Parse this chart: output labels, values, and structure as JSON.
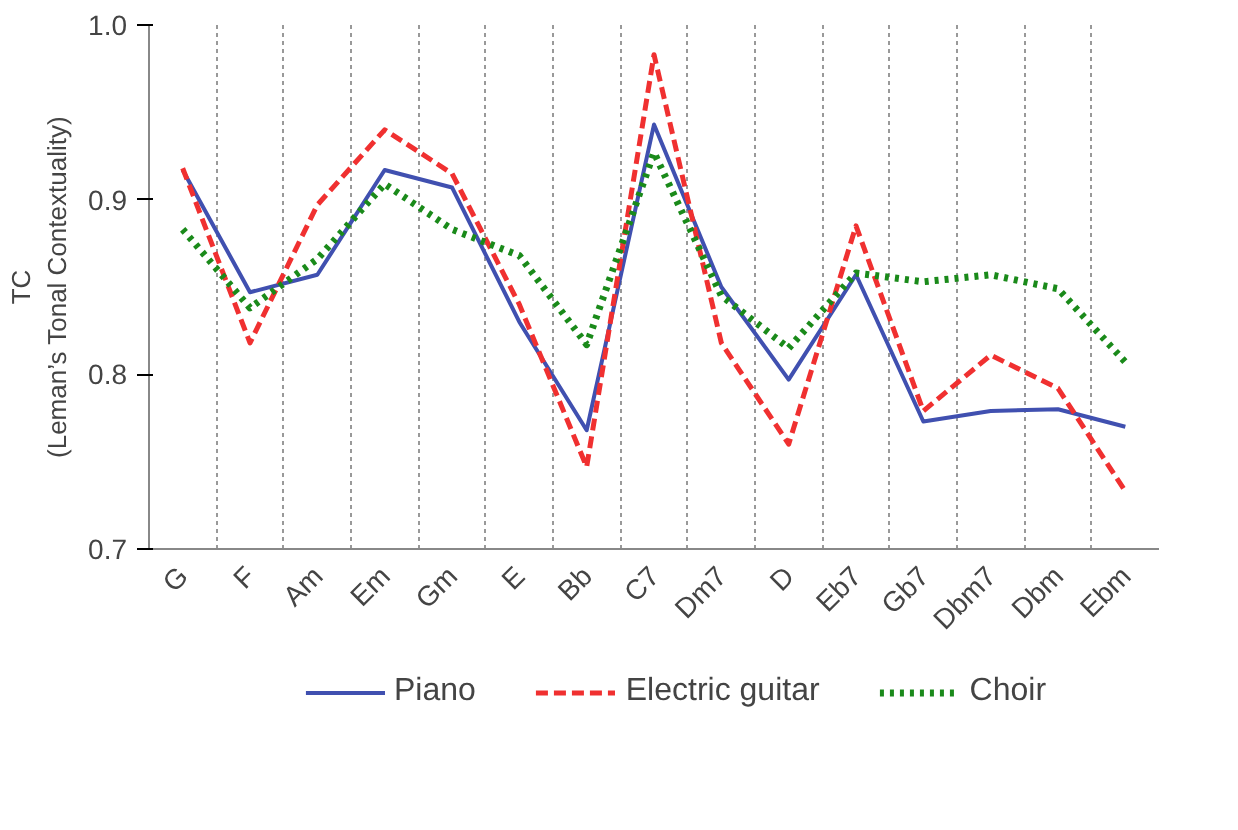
{
  "chart_data": {
    "type": "line",
    "ylabel": "TC\n(Leman’s Tonal Contextuality)",
    "categories": [
      "G",
      "F",
      "Am",
      "Em",
      "Gm",
      "E",
      "Bb",
      "C7",
      "Dm7",
      "D",
      "Eb7",
      "Gb7",
      "Dbm7",
      "Dbm",
      "Ebm"
    ],
    "ylim": [
      0.7,
      1.0
    ],
    "yticks": [
      {
        "value": 0.7,
        "label": "0.7"
      },
      {
        "value": 0.8,
        "label": "0.8"
      },
      {
        "value": 0.9,
        "label": "0.9"
      },
      {
        "value": 1.0,
        "label": "1.0"
      }
    ],
    "grid": "x",
    "legend": "bottom",
    "series": [
      {
        "name": "Piano",
        "color": "#4050b0",
        "line_style": "solid",
        "values": [
          0.917,
          0.847,
          0.857,
          0.917,
          0.907,
          0.83,
          0.768,
          0.943,
          0.85,
          0.797,
          0.857,
          0.773,
          0.779,
          0.78,
          0.77
        ]
      },
      {
        "name": "Electric guitar",
        "color": "#f03030",
        "line_style": "dashed",
        "values": [
          0.918,
          0.818,
          0.897,
          0.94,
          0.915,
          0.84,
          0.747,
          0.983,
          0.818,
          0.76,
          0.885,
          0.779,
          0.811,
          0.792,
          0.733
        ]
      },
      {
        "name": "Choir",
        "color": "#1a8a1a",
        "line_style": "dotted",
        "values": [
          0.883,
          0.838,
          0.866,
          0.909,
          0.883,
          0.868,
          0.817,
          0.927,
          0.845,
          0.815,
          0.858,
          0.853,
          0.857,
          0.849,
          0.807
        ]
      }
    ]
  }
}
